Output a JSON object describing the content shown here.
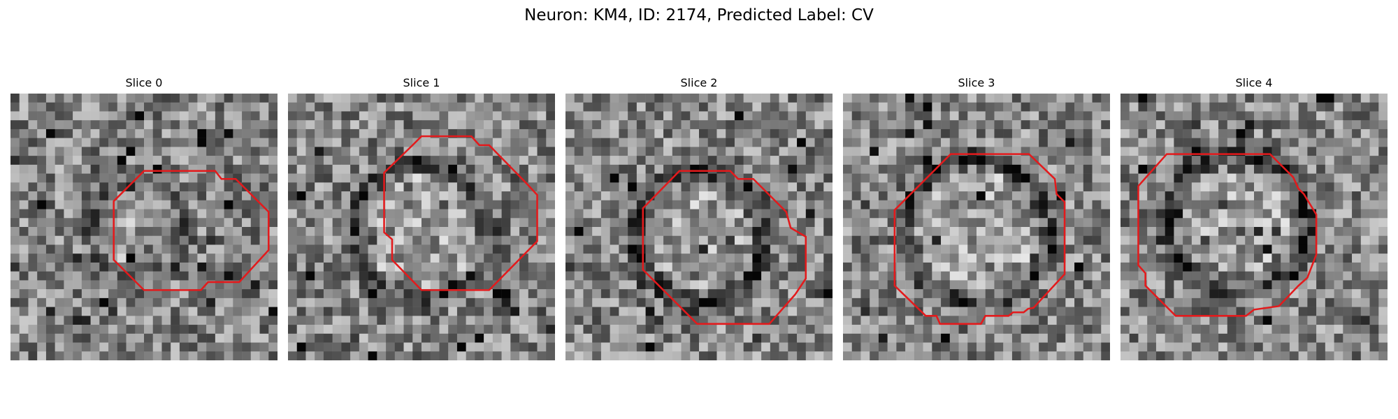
{
  "figure": {
    "title": "Neuron: KM4, ID: 2174, Predicted Label: CV"
  },
  "panels": [
    {
      "title": "Slice 0",
      "seed": 11,
      "ring": 0.45,
      "shade": 0.7
    },
    {
      "title": "Slice 1",
      "seed": 23,
      "ring": 0.65,
      "shade": 0.65
    },
    {
      "title": "Slice 2",
      "seed": 37,
      "ring": 0.8,
      "shade": 0.7
    },
    {
      "title": "Slice 3",
      "seed": 53,
      "ring": 0.75,
      "shade": 0.72
    },
    {
      "title": "Slice 4",
      "seed": 71,
      "ring": 0.85,
      "shade": 0.72
    }
  ],
  "colors": {
    "contour": "#e31a1c"
  }
}
